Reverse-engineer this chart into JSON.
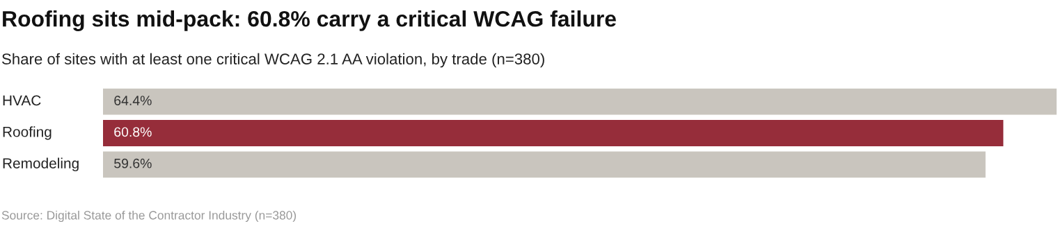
{
  "chart_data": {
    "type": "bar",
    "orientation": "horizontal",
    "title": "Roofing sits mid-pack: 60.8% carry a critical WCAG failure",
    "subtitle": "Share of sites with at least one critical WCAG 2.1 AA violation, by trade (n=380)",
    "categories": [
      "HVAC",
      "Roofing",
      "Remodeling"
    ],
    "values": [
      64.4,
      60.8,
      59.6
    ],
    "colors": [
      "#c9c5be",
      "#962d3a",
      "#c9c5be"
    ],
    "value_labels": [
      "64.4%",
      "60.8%",
      "59.6%"
    ],
    "annotations": [
      "Source: Digital State of the Contractor Industry (n=380)"
    ]
  }
}
